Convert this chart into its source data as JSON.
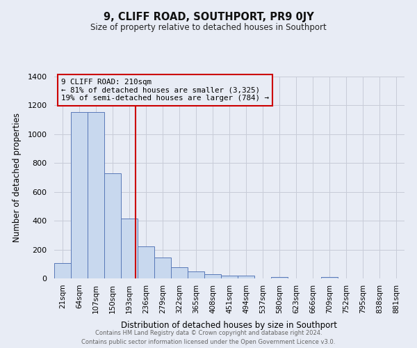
{
  "title": "9, CLIFF ROAD, SOUTHPORT, PR9 0JY",
  "subtitle": "Size of property relative to detached houses in Southport",
  "xlabel": "Distribution of detached houses by size in Southport",
  "ylabel": "Number of detached properties",
  "bin_labels": [
    "21sqm",
    "64sqm",
    "107sqm",
    "150sqm",
    "193sqm",
    "236sqm",
    "279sqm",
    "322sqm",
    "365sqm",
    "408sqm",
    "451sqm",
    "494sqm",
    "537sqm",
    "580sqm",
    "623sqm",
    "666sqm",
    "709sqm",
    "752sqm",
    "795sqm",
    "838sqm",
    "881sqm"
  ],
  "bar_heights": [
    107,
    1155,
    1155,
    730,
    415,
    220,
    145,
    75,
    50,
    30,
    20,
    20,
    0,
    10,
    0,
    0,
    10,
    0,
    0,
    0,
    0
  ],
  "bar_color": "#c8d8ee",
  "bar_edge_color": "#5878b8",
  "grid_color": "#c8ccd8",
  "bg_color": "#e8ecf5",
  "annotation_box_color": "#cc0000",
  "annotation_text": "9 CLIFF ROAD: 210sqm\n← 81% of detached houses are smaller (3,325)\n19% of semi-detached houses are larger (784) →",
  "ylim_max": 1400,
  "yticks": [
    0,
    200,
    400,
    600,
    800,
    1000,
    1200,
    1400
  ],
  "bin_edges_sqm": [
    21,
    64,
    107,
    150,
    193,
    236,
    279,
    322,
    365,
    408,
    451,
    494,
    537,
    580,
    623,
    666,
    709,
    752,
    795,
    838,
    881
  ],
  "property_sqm": 210,
  "footer_line1": "Contains HM Land Registry data © Crown copyright and database right 2024.",
  "footer_line2": "Contains public sector information licensed under the Open Government Licence v3.0."
}
